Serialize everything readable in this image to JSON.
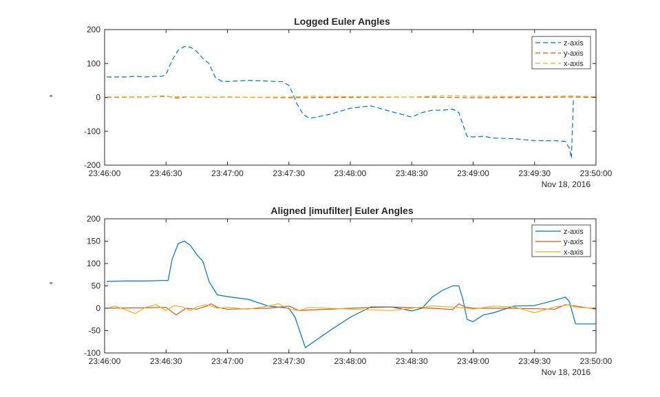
{
  "figure": {
    "background": "#ffffff",
    "axis_color": "#262626",
    "series_colors": {
      "z": "#0072BD",
      "y": "#D95319",
      "x": "#EDB120"
    }
  },
  "chart_data": [
    {
      "type": "line",
      "title": "Logged Euler Angles",
      "ylabel": "°",
      "xlabel": "",
      "x_date_label": "Nov 18, 2016",
      "line_style": "dashed",
      "ylim": [
        -200,
        200
      ],
      "yticks": [
        -200,
        -100,
        0,
        100,
        200
      ],
      "xlim": [
        "23:46:00",
        "23:50:00"
      ],
      "xticks": [
        "23:46:00",
        "23:46:30",
        "23:47:00",
        "23:47:30",
        "23:48:00",
        "23:48:30",
        "23:49:00",
        "23:49:30",
        "23:50:00"
      ],
      "legend_position": "top-right",
      "grid": false,
      "series": [
        {
          "name": "z-axis",
          "color": "#0072BD",
          "x": [
            "23:46:01",
            "23:46:10",
            "23:46:15",
            "23:46:20",
            "23:46:25",
            "23:46:28",
            "23:46:30",
            "23:46:33",
            "23:46:36",
            "23:46:39",
            "23:46:42",
            "23:46:45",
            "23:46:48",
            "23:46:51",
            "23:46:54",
            "23:46:57",
            "23:47:00",
            "23:47:10",
            "23:47:20",
            "23:47:27",
            "23:47:30",
            "23:47:32",
            "23:47:34",
            "23:47:37",
            "23:47:40",
            "23:47:50",
            "23:48:00",
            "23:48:10",
            "23:48:20",
            "23:48:30",
            "23:48:35",
            "23:48:40",
            "23:48:45",
            "23:48:50",
            "23:48:53",
            "23:48:55",
            "23:48:57",
            "23:49:00",
            "23:49:05",
            "23:49:10",
            "23:49:20",
            "23:49:30",
            "23:49:40",
            "23:49:45",
            "23:49:47",
            "23:49:48",
            "23:49:49"
          ],
          "y": [
            60,
            60,
            62,
            60,
            62,
            62,
            68,
            110,
            140,
            150,
            148,
            135,
            115,
            100,
            60,
            48,
            47,
            50,
            48,
            46,
            35,
            10,
            -20,
            -50,
            -62,
            -50,
            -32,
            -25,
            -42,
            -58,
            -45,
            -38,
            -38,
            -35,
            -45,
            -80,
            -115,
            -117,
            -115,
            -120,
            -122,
            -128,
            -128,
            -130,
            -150,
            -180,
            0
          ]
        },
        {
          "name": "y-axis",
          "color": "#D95319",
          "x": [
            "23:46:01",
            "23:46:20",
            "23:46:30",
            "23:46:35",
            "23:46:40",
            "23:46:50",
            "23:47:00",
            "23:47:30",
            "23:48:00",
            "23:48:30",
            "23:49:00",
            "23:49:30",
            "23:49:48",
            "23:50:00"
          ],
          "y": [
            0,
            1,
            4,
            -2,
            1,
            0,
            1,
            -1,
            0,
            1,
            -1,
            0,
            1,
            0
          ]
        },
        {
          "name": "x-axis",
          "color": "#EDB120",
          "x": [
            "23:46:01",
            "23:46:30",
            "23:47:00",
            "23:47:30",
            "23:47:40",
            "23:48:00",
            "23:48:30",
            "23:48:45",
            "23:49:00",
            "23:49:30",
            "23:49:48",
            "23:50:00"
          ],
          "y": [
            1,
            2,
            0,
            1,
            3,
            2,
            1,
            5,
            3,
            2,
            4,
            2
          ]
        }
      ]
    },
    {
      "type": "line",
      "title": "Aligned |imufilter| Euler Angles",
      "ylabel": "°",
      "xlabel": "",
      "x_date_label": "Nov 18, 2016",
      "line_style": "solid",
      "ylim": [
        -100,
        200
      ],
      "yticks": [
        -100,
        -50,
        0,
        50,
        100,
        150,
        200
      ],
      "xlim": [
        "23:46:00",
        "23:50:00"
      ],
      "xticks": [
        "23:46:00",
        "23:46:30",
        "23:47:00",
        "23:47:30",
        "23:48:00",
        "23:48:30",
        "23:49:00",
        "23:49:30",
        "23:50:00"
      ],
      "legend_position": "top-right",
      "grid": false,
      "series": [
        {
          "name": "z-axis",
          "color": "#0072BD",
          "x": [
            "23:46:01",
            "23:46:10",
            "23:46:20",
            "23:46:28",
            "23:46:31",
            "23:46:33",
            "23:46:36",
            "23:46:39",
            "23:46:42",
            "23:46:45",
            "23:46:48",
            "23:46:51",
            "23:46:55",
            "23:47:00",
            "23:47:10",
            "23:47:20",
            "23:47:30",
            "23:47:33",
            "23:47:38",
            "23:47:50",
            "23:48:00",
            "23:48:10",
            "23:48:20",
            "23:48:30",
            "23:48:35",
            "23:48:40",
            "23:48:45",
            "23:48:50",
            "23:48:53",
            "23:48:55",
            "23:48:57",
            "23:49:00",
            "23:49:05",
            "23:49:10",
            "23:49:20",
            "23:49:30",
            "23:49:40",
            "23:49:45",
            "23:49:47",
            "23:49:50",
            "23:50:00"
          ],
          "y": [
            60,
            61,
            61,
            62,
            62,
            110,
            145,
            150,
            140,
            120,
            105,
            60,
            30,
            26,
            20,
            5,
            0,
            -20,
            -88,
            -50,
            -20,
            3,
            3,
            -6,
            0,
            25,
            40,
            50,
            50,
            20,
            -25,
            -30,
            -15,
            -10,
            5,
            6,
            18,
            25,
            15,
            -35,
            -35
          ]
        },
        {
          "name": "y-axis",
          "color": "#D95319",
          "x": [
            "23:46:01",
            "23:46:20",
            "23:46:30",
            "23:46:32",
            "23:46:35",
            "23:46:38",
            "23:46:40",
            "23:46:45",
            "23:46:50",
            "23:46:52",
            "23:46:55",
            "23:47:00",
            "23:47:20",
            "23:47:30",
            "23:47:35",
            "23:47:40",
            "23:48:00",
            "23:48:20",
            "23:48:40",
            "23:48:50",
            "23:48:53",
            "23:48:56",
            "23:49:00",
            "23:49:20",
            "23:49:40",
            "23:49:45",
            "23:49:50",
            "23:50:00"
          ],
          "y": [
            0,
            1,
            2,
            -5,
            -15,
            -5,
            0,
            -2,
            5,
            10,
            2,
            -2,
            0,
            5,
            -5,
            -4,
            0,
            3,
            0,
            -3,
            10,
            3,
            0,
            0,
            -2,
            8,
            5,
            -2
          ]
        },
        {
          "name": "x-axis",
          "color": "#EDB120",
          "x": [
            "23:46:01",
            "23:46:05",
            "23:46:10",
            "23:46:15",
            "23:46:20",
            "23:46:25",
            "23:46:30",
            "23:46:34",
            "23:46:38",
            "23:46:42",
            "23:46:45",
            "23:46:50",
            "23:46:55",
            "23:47:00",
            "23:47:10",
            "23:47:20",
            "23:47:25",
            "23:47:30",
            "23:47:35",
            "23:47:40",
            "23:48:00",
            "23:48:20",
            "23:48:30",
            "23:48:40",
            "23:48:50",
            "23:49:00",
            "23:49:10",
            "23:49:20",
            "23:49:30",
            "23:49:40",
            "23:49:47",
            "23:49:50",
            "23:50:00"
          ],
          "y": [
            0,
            5,
            -3,
            -12,
            2,
            8,
            -5,
            6,
            3,
            -5,
            3,
            8,
            0,
            2,
            -2,
            5,
            10,
            -2,
            -5,
            2,
            -2,
            -5,
            0,
            5,
            3,
            -2,
            5,
            3,
            -10,
            3,
            8,
            2,
            0
          ]
        }
      ]
    }
  ]
}
